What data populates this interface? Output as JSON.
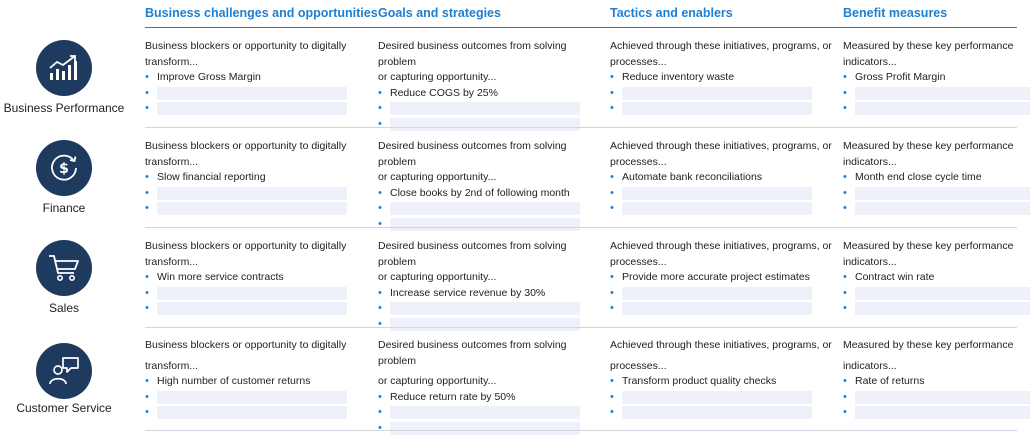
{
  "columns": [
    "Business challenges and opportunities",
    "Goals and strategies",
    "Tactics and enablers",
    "Benefit measures"
  ],
  "column_descriptions": [
    [
      "Business blockers or opportunity to digitally",
      "transform..."
    ],
    [
      "Desired business outcomes from solving problem",
      "or capturing opportunity..."
    ],
    [
      "Achieved through these initiatives, programs, or",
      "processes..."
    ],
    [
      "Measured by these key performance",
      "indicators..."
    ]
  ],
  "rows": [
    {
      "label": "Business Performance",
      "icon": "chart-growth-icon",
      "cells": [
        "Improve Gross Margin",
        "Reduce COGS by 25%",
        "Reduce inventory waste",
        "Gross Profit Margin"
      ]
    },
    {
      "label": "Finance",
      "icon": "dollar-cycle-icon",
      "cells": [
        "Slow financial reporting",
        "Close books by 2nd of following month",
        "Automate bank reconciliations",
        "Month end close cycle time"
      ]
    },
    {
      "label": "Sales",
      "icon": "shopping-cart-icon",
      "cells": [
        "Win more service contracts",
        "Increase service revenue by 30%",
        "Provide more accurate project estimates",
        "Contract win rate"
      ]
    },
    {
      "label": "Customer Service",
      "icon": "customer-support-icon",
      "cells": [
        "High number of customer returns",
        "Reduce return rate by 50%",
        "Transform product quality checks",
        "Rate of returns"
      ]
    }
  ],
  "colors": {
    "accent": "#1f7fd1",
    "icon_bg": "#1f3a5f",
    "empty_field": "#eef1fa"
  }
}
